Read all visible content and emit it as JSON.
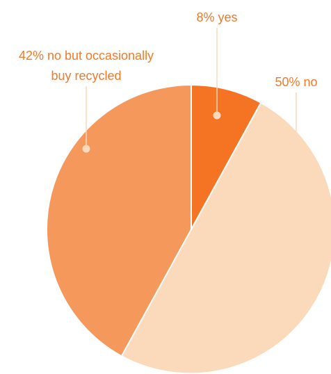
{
  "chart_data": {
    "type": "pie",
    "slices": [
      {
        "label": "8% yes",
        "value": 8,
        "color": "#f47424"
      },
      {
        "label": "50% no",
        "value": 50,
        "color": "#fbd9bb"
      },
      {
        "label_lines": [
          "42% no but occasionally",
          "buy recycled"
        ],
        "value": 42,
        "color": "#f5985b"
      }
    ],
    "label_color": "#f07a2a",
    "start_angle_deg": 0,
    "direction": "clockwise"
  }
}
